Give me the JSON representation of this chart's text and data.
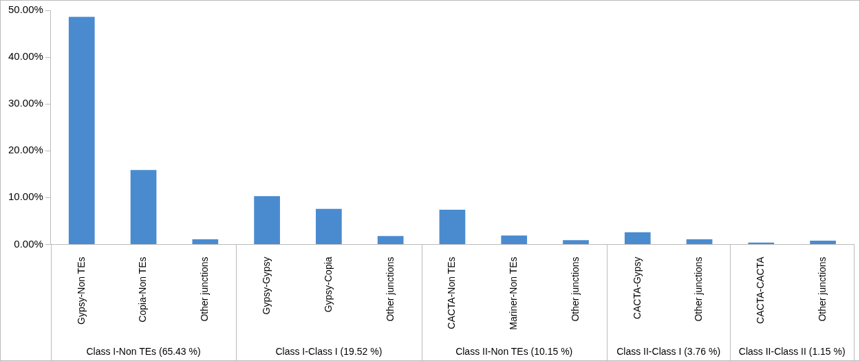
{
  "chart_data": {
    "type": "bar",
    "categories": [
      "Gypsy-Non TEs",
      "Copia-Non TEs",
      "Other junctions",
      "Gypsy-Gypsy",
      "Gypsy-Copia",
      "Other junctions",
      "CACTA-Non TEs",
      "Mariner-Non TEs",
      "Other junctions",
      "CACTA-Gypsy",
      "Other junctions",
      "CACTA-CACTA",
      "Other junctions"
    ],
    "values": [
      48.6,
      15.9,
      1.1,
      10.3,
      7.6,
      1.8,
      7.4,
      1.9,
      0.9,
      2.6,
      1.1,
      0.4,
      0.8
    ],
    "color": "#4a8bd0",
    "ylim": [
      0,
      50
    ],
    "yticks": [
      {
        "value": 0,
        "label": "0.00%"
      },
      {
        "value": 10,
        "label": "10.00%"
      },
      {
        "value": 20,
        "label": "20.00%"
      },
      {
        "value": 30,
        "label": "30.00%"
      },
      {
        "value": 40,
        "label": "40.00%"
      },
      {
        "value": 50,
        "label": "50.00%"
      }
    ],
    "annotations": [
      "Class I-Non TEs (65.43 %)",
      "Class I-Class I (19.52 %)",
      "Class II-Non TEs (10.15 %)",
      "Class II-Class I (3.76 %)",
      "Class II-Class II (1.15 %)"
    ],
    "grid": false,
    "legend": false
  }
}
